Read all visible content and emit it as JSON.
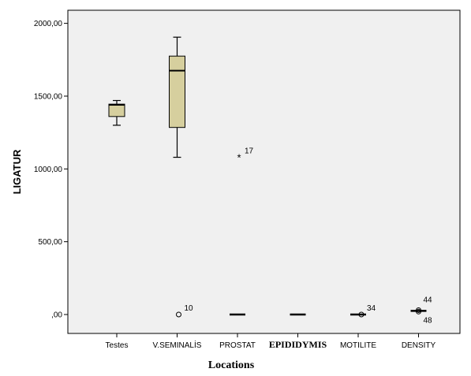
{
  "chart_data": {
    "type": "box",
    "xlabel": "Locations",
    "ylabel": "LIGATUR",
    "ylim": [
      -130,
      2090
    ],
    "y_ticks": [
      {
        "value": 0,
        "label": ",00"
      },
      {
        "value": 500,
        "label": "500,00"
      },
      {
        "value": 1000,
        "label": "1000,00"
      },
      {
        "value": 1500,
        "label": "1500,00"
      },
      {
        "value": 2000,
        "label": "2000,00"
      }
    ],
    "grid": false,
    "categories": [
      "Testes",
      "V.SEMINALİS",
      "PROSTAT",
      "EPIDIDYMIS",
      "MOTILITE",
      "DENSITY"
    ],
    "boxes": [
      {
        "category": "Testes",
        "min": 1300,
        "q1": 1360,
        "median": 1440,
        "q3": 1445,
        "max": 1470
      },
      {
        "category": "V.SEMINALİS",
        "min": 1080,
        "q1": 1285,
        "median": 1675,
        "q3": 1775,
        "max": 1905
      },
      {
        "category": "PROSTAT",
        "min": 0,
        "q1": 0,
        "median": 0,
        "q3": 0,
        "max": 0
      },
      {
        "category": "EPIDIDYMIS",
        "min": 0,
        "q1": 0,
        "median": 0,
        "q3": 0,
        "max": 0
      },
      {
        "category": "MOTILITE",
        "min": 0,
        "q1": 0,
        "median": 0,
        "q3": 0,
        "max": 0
      },
      {
        "category": "DENSITY",
        "min": 25,
        "q1": 25,
        "median": 25,
        "q3": 25,
        "max": 25
      }
    ],
    "outliers": [
      {
        "category": "V.SEMINALİS",
        "value": 0,
        "marker": "circle",
        "label": "10"
      },
      {
        "category": "PROSTAT",
        "value": 1080,
        "marker": "star",
        "label": "17"
      },
      {
        "category": "MOTILITE",
        "value": 0,
        "marker": "circle",
        "label": "34"
      },
      {
        "category": "DENSITY",
        "value": 30,
        "marker": "circle",
        "label": "44"
      },
      {
        "category": "DENSITY",
        "value": 20,
        "marker": "circle",
        "label": "48"
      }
    ],
    "colors": {
      "plot_background": "#f0f0f0",
      "box_fill": "#d6cf9e",
      "stroke": "#000000"
    }
  }
}
